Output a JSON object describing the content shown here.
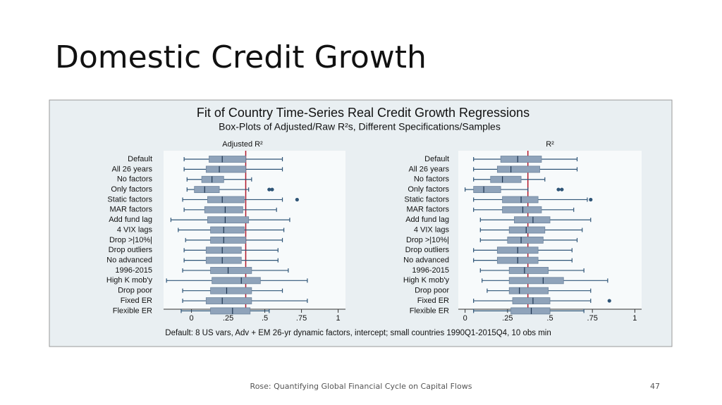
{
  "slide": {
    "title": "Domestic Credit Growth",
    "footer": "Rose: Quantifying Global Financial Cycle on Capital Flows",
    "page_number": "47"
  },
  "figure": {
    "title": "Fit of Country Time-Series Real Credit Growth Regressions",
    "subtitle": "Box-Plots of Adjusted/Raw R²s, Different Specifications/Samples",
    "note": "Default: 8 US vars, Adv + EM 26-yr dynamic factors, intercept; small countries 1990Q1-2015Q4, 10 obs min"
  },
  "chart_data": [
    {
      "type": "box",
      "title": "Adjusted R²",
      "categories": [
        "Default",
        "All 26 years",
        "No factors",
        "Only factors",
        "Static factors",
        "MAR factors",
        "Add fund lag",
        "4 VIX lags",
        "Drop >|10%|",
        "Drop outliers",
        "No advanced",
        "1996-2015",
        "High K mob'y",
        "Drop poor",
        "Fixed ER",
        "Flexible ER"
      ],
      "boxes": [
        {
          "whislo": -0.05,
          "q1": 0.12,
          "med": 0.21,
          "q3": 0.37,
          "whishi": 0.62,
          "fliers": []
        },
        {
          "whislo": -0.05,
          "q1": 0.1,
          "med": 0.19,
          "q3": 0.37,
          "whishi": 0.62,
          "fliers": []
        },
        {
          "whislo": -0.03,
          "q1": 0.07,
          "med": 0.14,
          "q3": 0.22,
          "whishi": 0.41,
          "fliers": []
        },
        {
          "whislo": -0.03,
          "q1": 0.02,
          "med": 0.09,
          "q3": 0.19,
          "whishi": 0.39,
          "fliers": [
            0.53,
            0.55
          ]
        },
        {
          "whislo": -0.06,
          "q1": 0.11,
          "med": 0.21,
          "q3": 0.36,
          "whishi": 0.62,
          "fliers": [
            0.72
          ]
        },
        {
          "whislo": -0.05,
          "q1": 0.09,
          "med": 0.23,
          "q3": 0.35,
          "whishi": 0.58,
          "fliers": []
        },
        {
          "whislo": -0.14,
          "q1": 0.11,
          "med": 0.23,
          "q3": 0.39,
          "whishi": 0.67,
          "fliers": []
        },
        {
          "whislo": -0.09,
          "q1": 0.13,
          "med": 0.22,
          "q3": 0.36,
          "whishi": 0.63,
          "fliers": []
        },
        {
          "whislo": -0.04,
          "q1": 0.13,
          "med": 0.22,
          "q3": 0.37,
          "whishi": 0.62,
          "fliers": []
        },
        {
          "whislo": -0.05,
          "q1": 0.1,
          "med": 0.21,
          "q3": 0.34,
          "whishi": 0.59,
          "fliers": []
        },
        {
          "whislo": -0.05,
          "q1": 0.1,
          "med": 0.21,
          "q3": 0.34,
          "whishi": 0.59,
          "fliers": []
        },
        {
          "whislo": -0.06,
          "q1": 0.13,
          "med": 0.25,
          "q3": 0.41,
          "whishi": 0.66,
          "fliers": []
        },
        {
          "whislo": -0.17,
          "q1": 0.14,
          "med": 0.34,
          "q3": 0.47,
          "whishi": 0.79,
          "fliers": []
        },
        {
          "whislo": -0.06,
          "q1": 0.13,
          "med": 0.24,
          "q3": 0.41,
          "whishi": 0.62,
          "fliers": []
        },
        {
          "whislo": -0.06,
          "q1": 0.1,
          "med": 0.21,
          "q3": 0.41,
          "whishi": 0.79,
          "fliers": []
        },
        {
          "whislo": -0.07,
          "q1": 0.13,
          "med": 0.28,
          "q3": 0.4,
          "whishi": 0.53,
          "fliers": []
        }
      ],
      "ref_line": 0.37,
      "ref_color": "#b2182b",
      "color": "#8fa3ba",
      "edge_color": "#2f5577",
      "xlim": [
        -0.19,
        1.05
      ],
      "xticks": [
        0,
        {
          "value": 0.25,
          "label": ".25"
        },
        {
          "value": 0.5,
          "label": ".5"
        },
        {
          "value": 0.75,
          "label": ".75"
        },
        1
      ]
    },
    {
      "type": "box",
      "title": "R²",
      "categories": [
        "Default",
        "All 26 years",
        "No factors",
        "Only factors",
        "Static factors",
        "MAR factors",
        "Add fund lag",
        "4 VIX lags",
        "Drop >|10%|",
        "Drop outliers",
        "No advanced",
        "1996-2015",
        "High K mob'y",
        "Drop poor",
        "Fixed ER",
        "Flexible ER"
      ],
      "boxes": [
        {
          "whislo": 0.05,
          "q1": 0.21,
          "med": 0.31,
          "q3": 0.45,
          "whishi": 0.66,
          "fliers": []
        },
        {
          "whislo": 0.05,
          "q1": 0.19,
          "med": 0.27,
          "q3": 0.44,
          "whishi": 0.66,
          "fliers": []
        },
        {
          "whislo": 0.05,
          "q1": 0.15,
          "med": 0.22,
          "q3": 0.33,
          "whishi": 0.47,
          "fliers": []
        },
        {
          "whislo": 0,
          "q1": 0.05,
          "med": 0.11,
          "q3": 0.21,
          "whishi": 0.37,
          "fliers": [
            0.55,
            0.57
          ]
        },
        {
          "whislo": 0.05,
          "q1": 0.22,
          "med": 0.33,
          "q3": 0.43,
          "whishi": 0.72,
          "fliers": [
            0.74
          ]
        },
        {
          "whislo": 0.05,
          "q1": 0.22,
          "med": 0.34,
          "q3": 0.45,
          "whishi": 0.64,
          "fliers": []
        },
        {
          "whislo": 0.09,
          "q1": 0.29,
          "med": 0.4,
          "q3": 0.5,
          "whishi": 0.74,
          "fliers": []
        },
        {
          "whislo": 0.09,
          "q1": 0.26,
          "med": 0.36,
          "q3": 0.47,
          "whishi": 0.69,
          "fliers": []
        },
        {
          "whislo": 0.09,
          "q1": 0.25,
          "med": 0.33,
          "q3": 0.46,
          "whishi": 0.66,
          "fliers": []
        },
        {
          "whislo": 0.05,
          "q1": 0.19,
          "med": 0.31,
          "q3": 0.43,
          "whishi": 0.63,
          "fliers": []
        },
        {
          "whislo": 0.05,
          "q1": 0.19,
          "med": 0.31,
          "q3": 0.43,
          "whishi": 0.63,
          "fliers": []
        },
        {
          "whislo": 0.09,
          "q1": 0.26,
          "med": 0.35,
          "q3": 0.49,
          "whishi": 0.7,
          "fliers": []
        },
        {
          "whislo": 0.1,
          "q1": 0.26,
          "med": 0.46,
          "q3": 0.58,
          "whishi": 0.84,
          "fliers": []
        },
        {
          "whislo": 0.13,
          "q1": 0.26,
          "med": 0.32,
          "q3": 0.49,
          "whishi": 0.74,
          "fliers": []
        },
        {
          "whislo": 0.05,
          "q1": 0.28,
          "med": 0.4,
          "q3": 0.5,
          "whishi": 0.74,
          "fliers": [
            0.85
          ]
        },
        {
          "whislo": 0.05,
          "q1": 0.27,
          "med": 0.39,
          "q3": 0.5,
          "whishi": 0.7,
          "fliers": []
        }
      ],
      "ref_line": 0.37,
      "ref_color": "#b2182b",
      "color": "#8fa3ba",
      "edge_color": "#2f5577",
      "xlim": [
        -0.04,
        1.04
      ],
      "xticks": [
        0,
        {
          "value": 0.25,
          "label": ".25"
        },
        {
          "value": 0.5,
          "label": ".5"
        },
        {
          "value": 0.75,
          "label": ".75"
        },
        1
      ]
    }
  ]
}
